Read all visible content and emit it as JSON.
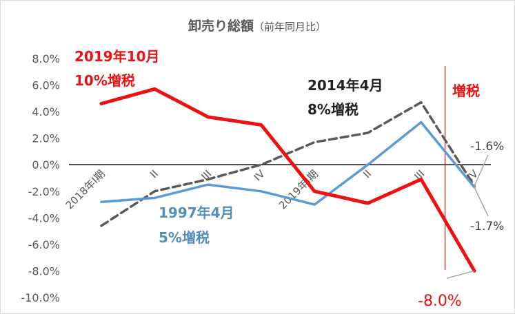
{
  "chart_data": {
    "type": "line",
    "title": "卸売り総額",
    "subtitle": "（前年同月比）",
    "categories": [
      "2018年I期",
      "II",
      "III",
      "IV",
      "2019年I期",
      "II",
      "III",
      "IV"
    ],
    "y_ticks": [
      "8.0%",
      "6.0%",
      "4.0%",
      "2.0%",
      "0.0%",
      "-2.0%",
      "-4.0%",
      "-6.0%",
      "-8.0%",
      "-10.0%"
    ],
    "ylim": [
      -10,
      8
    ],
    "grid": false,
    "series": [
      {
        "name": "2019年10月 10%増税",
        "color": "#ee1111",
        "dash": "solid",
        "values": [
          4.6,
          5.7,
          3.6,
          3.0,
          -2.0,
          -2.9,
          -1.1,
          -8.0
        ]
      },
      {
        "name": "2014年4月 8%増税",
        "color": "#595959",
        "dash": "dashed",
        "values": [
          -4.6,
          -2.0,
          -1.1,
          0.0,
          1.7,
          2.4,
          4.7,
          -1.6
        ]
      },
      {
        "name": "1997年4月 5%増税",
        "color": "#5b9bd5",
        "dash": "solid",
        "values": [
          -2.8,
          -2.5,
          -1.5,
          -2.0,
          -3.0,
          0.0,
          3.2,
          -1.7
        ]
      }
    ],
    "annotations": {
      "red_line1": "2019年10月",
      "red_line2": "10%増税",
      "black_line1": "2014年4月",
      "black_line2": "8%増税",
      "blue_line1": "1997年4月",
      "blue_line2": "5%増税",
      "tax_hike_marker": "増税"
    },
    "value_labels": {
      "black_last": "-1.6%",
      "blue_last": "-1.7%",
      "red_last": "-8.0%"
    }
  }
}
